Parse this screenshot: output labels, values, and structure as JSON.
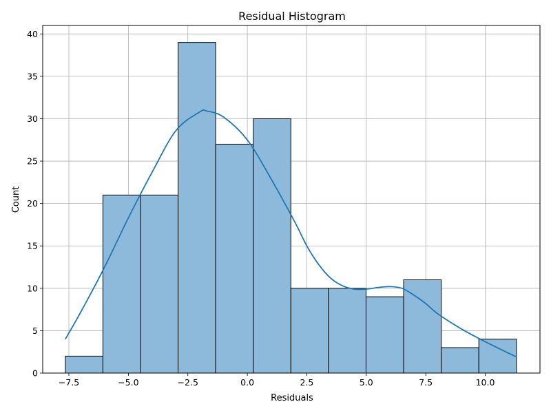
{
  "chart_data": {
    "type": "bar",
    "subtype": "histogram",
    "title": "Residual Histogram",
    "xlabel": "Residuals",
    "ylabel": "Count",
    "bin_edges": [
      -7.65,
      -6.07,
      -4.49,
      -2.91,
      -1.33,
      0.25,
      1.83,
      3.41,
      4.99,
      6.57,
      8.15,
      9.73,
      11.31
    ],
    "values": [
      2,
      21,
      21,
      39,
      27,
      30,
      10,
      10,
      9,
      11,
      3,
      4
    ],
    "xlim": [
      -8.6,
      12.3
    ],
    "ylim": [
      0,
      41
    ],
    "xticks": [
      -7.5,
      -5.0,
      -2.5,
      0.0,
      2.5,
      5.0,
      7.5,
      10.0
    ],
    "xtick_labels": [
      "−7.5",
      "−5.0",
      "−2.5",
      "0.0",
      "2.5",
      "5.0",
      "7.5",
      "10.0"
    ],
    "yticks": [
      0,
      5,
      10,
      15,
      20,
      25,
      30,
      35,
      40
    ],
    "ytick_labels": [
      "0",
      "5",
      "10",
      "15",
      "20",
      "25",
      "30",
      "35",
      "40"
    ],
    "grid": true,
    "bar_color": "#8db9db",
    "bar_edge_color": "#000000",
    "kde": {
      "color": "#1f77b4",
      "x": [
        -7.65,
        -7.0,
        -6.0,
        -5.0,
        -4.0,
        -3.0,
        -2.0,
        -1.7,
        -1.0,
        0.0,
        1.0,
        2.0,
        2.5,
        3.0,
        3.5,
        4.0,
        4.5,
        5.0,
        5.5,
        6.0,
        6.5,
        7.0,
        7.5,
        8.0,
        9.0,
        10.0,
        11.31
      ],
      "y": [
        4.0,
        7.2,
        12.5,
        18.3,
        23.7,
        28.6,
        30.8,
        30.9,
        30.2,
        27.5,
        22.9,
        17.8,
        15.0,
        12.8,
        11.2,
        10.3,
        9.9,
        9.9,
        10.1,
        10.2,
        10.0,
        9.2,
        8.2,
        7.0,
        5.2,
        3.7,
        1.9
      ]
    }
  }
}
